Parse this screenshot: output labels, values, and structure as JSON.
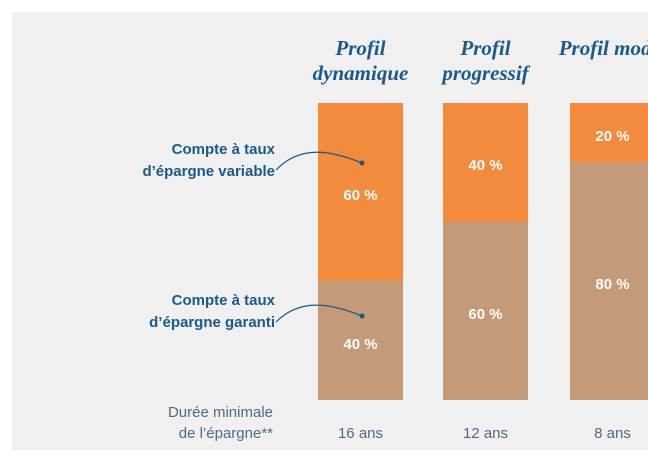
{
  "chart_data": {
    "type": "stacked-bar",
    "categories": [
      "Profil dynamique",
      "Profil progressif",
      "Profil modéré"
    ],
    "series": [
      {
        "name": "Compte à taux d’épargne garanti",
        "color": "#c49a78",
        "values": [
          40,
          60,
          80
        ],
        "value_labels": [
          "40 %",
          "60 %",
          "80 %"
        ]
      },
      {
        "name": "Compte à taux d’épargne variable",
        "color": "#f28b3c",
        "values": [
          60,
          40,
          20
        ],
        "value_labels": [
          "60 %",
          "40 %",
          "20 %"
        ]
      }
    ],
    "ylim": [
      0,
      100
    ],
    "duration_label": "Durée minimale de l’épargne**",
    "durations": [
      "16 ans",
      "12 ans",
      "8 ans"
    ]
  }
}
